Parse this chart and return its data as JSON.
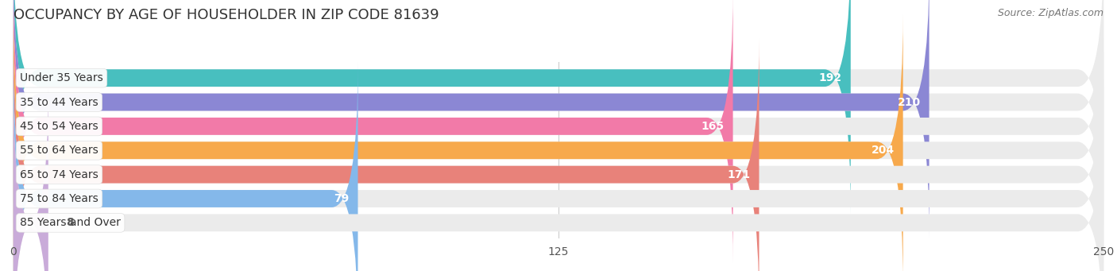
{
  "title": "OCCUPANCY BY AGE OF HOUSEHOLDER IN ZIP CODE 81639",
  "source": "Source: ZipAtlas.com",
  "categories": [
    "Under 35 Years",
    "35 to 44 Years",
    "45 to 54 Years",
    "55 to 64 Years",
    "65 to 74 Years",
    "75 to 84 Years",
    "85 Years and Over"
  ],
  "values": [
    192,
    210,
    165,
    204,
    171,
    79,
    8
  ],
  "bar_colors": [
    "#48BFBF",
    "#8B87D4",
    "#F27AA8",
    "#F7A94C",
    "#E8827A",
    "#84B8EA",
    "#C9ABD9"
  ],
  "xlim": [
    0,
    250
  ],
  "xticks": [
    0,
    125,
    250
  ],
  "background_color": "#ffffff",
  "bar_background_color": "#ebebeb",
  "title_fontsize": 13,
  "source_fontsize": 9,
  "label_fontsize": 10,
  "value_fontsize": 10,
  "tick_fontsize": 10,
  "bar_height": 0.72,
  "bar_gap": 0.28
}
